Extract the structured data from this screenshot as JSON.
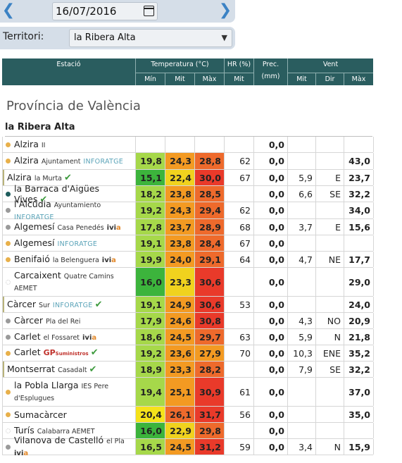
{
  "controls": {
    "date": "16/07/2016",
    "territory_label": "Territori:",
    "territory_value": "la Ribera Alta"
  },
  "header": {
    "station": "Estació",
    "temperature": "Temperatura (°C)",
    "t_min": "Mín",
    "t_mit": "Mit",
    "t_max": "Màx",
    "humidity": "HR (%)",
    "hr_mit": "Mit",
    "precip": "Prec. (mm)",
    "wind": "Vent",
    "w_mit": "Mit",
    "w_dir": "Dir",
    "w_max": "Màx"
  },
  "section": {
    "province": "Província de València",
    "region": "la Ribera Alta"
  },
  "colors": {
    "header_bg": "#2a5d5f",
    "dot_orange": "#e8b04a",
    "dot_gray": "#9a9a9a",
    "dot_teal": "#1e5c5c",
    "dot_empty": "#cccccc"
  },
  "rows": [
    {
      "name": "Alzira",
      "sub": "II",
      "brand": "",
      "check": false,
      "dot": "orange",
      "min": "",
      "mit": "",
      "max": "",
      "hr": "",
      "prec": "0,0",
      "vmit": "",
      "vdir": "",
      "vmax": "",
      "h": 23
    },
    {
      "name": "Alzira",
      "sub": "Ajuntament",
      "brand": "INFORATGE",
      "check": false,
      "dot": "orange",
      "min": "19,8",
      "mit": "24,3",
      "max": "28,8",
      "hr": "62",
      "prec": "0,0",
      "vmit": "",
      "vdir": "",
      "vmax": "43,0",
      "h": 24,
      "cmin": "green-light",
      "cmit": "orange",
      "cmax": "orange-red"
    },
    {
      "name": "Alzira",
      "sub": "la Murta",
      "brand": "",
      "check": true,
      "dot": "none",
      "min": "15,1",
      "mit": "22,4",
      "max": "30,0",
      "hr": "67",
      "prec": "0,0",
      "vmit": "5,9",
      "vdir": "E",
      "vmax": "23,7",
      "h": 23,
      "cmin": "green-dark",
      "cmit": "yellow",
      "cmax": "red"
    },
    {
      "name": "la Barraca d'Aigües Vives",
      "sub": "",
      "brand": "",
      "check": true,
      "dot": "teal",
      "min": "18,2",
      "mit": "23,8",
      "max": "28,5",
      "hr": "",
      "prec": "0,0",
      "vmit": "6,6",
      "vdir": "SE",
      "vmax": "32,2",
      "h": 23,
      "cmin": "green-light",
      "cmit": "orange",
      "cmax": "orange-red"
    },
    {
      "name": "l'Alcúdia",
      "sub": "Ayuntamiento",
      "brand": "INFORATGE",
      "check": false,
      "dot": "gray",
      "min": "19,2",
      "mit": "24,3",
      "max": "29,4",
      "hr": "62",
      "prec": "0,0",
      "vmit": "",
      "vdir": "",
      "vmax": "34,0",
      "h": 24,
      "cmin": "green-light",
      "cmit": "orange",
      "cmax": "orange-red"
    },
    {
      "name": "Algemesí",
      "sub": "Casa Penedés",
      "brand": "ivia",
      "check": false,
      "dot": "gray",
      "min": "17,8",
      "mit": "23,7",
      "max": "28,9",
      "hr": "68",
      "prec": "0,0",
      "vmit": "3,7",
      "vdir": "E",
      "vmax": "15,6",
      "h": 23,
      "cmin": "green-light",
      "cmit": "orange",
      "cmax": "orange-red"
    },
    {
      "name": "Algemesí",
      "sub": "",
      "brand": "INFORATGE",
      "check": false,
      "dot": "orange",
      "min": "19,1",
      "mit": "23,8",
      "max": "28,4",
      "hr": "67",
      "prec": "0,0",
      "vmit": "",
      "vdir": "",
      "vmax": "",
      "h": 23,
      "cmin": "green-light",
      "cmit": "orange",
      "cmax": "orange-red"
    },
    {
      "name": "Benifaió",
      "sub": "la Belenguera",
      "brand": "ivia",
      "check": false,
      "dot": "orange",
      "min": "19,9",
      "mit": "24,0",
      "max": "29,1",
      "hr": "64",
      "prec": "0,0",
      "vmit": "4,7",
      "vdir": "NE",
      "vmax": "17,7",
      "h": 23,
      "cmin": "green-light",
      "cmit": "orange",
      "cmax": "orange-red"
    },
    {
      "name": "Carcaixent",
      "sub": "Quatre Camins",
      "sub2": "AEMET",
      "brand": "",
      "check": false,
      "dot": "empty",
      "min": "16,0",
      "mit": "23,3",
      "max": "30,6",
      "hr": "",
      "prec": "0,0",
      "vmit": "",
      "vdir": "",
      "vmax": "29,0",
      "h": 41,
      "cmin": "green-dark",
      "cmit": "yellow",
      "cmax": "red"
    },
    {
      "name": "Càrcer",
      "sub": "Sur",
      "brand": "INFORATGE",
      "check": true,
      "dot": "none",
      "min": "19,1",
      "mit": "24,9",
      "max": "30,6",
      "hr": "53",
      "prec": "0,0",
      "vmit": "",
      "vdir": "",
      "vmax": "24,0",
      "h": 23,
      "cmin": "green-light",
      "cmit": "orange",
      "cmax": "red"
    },
    {
      "name": "Càrcer",
      "sub": "Pla del Rei",
      "brand": "",
      "check": false,
      "dot": "gray",
      "min": "17,9",
      "mit": "24,6",
      "max": "30,8",
      "hr": "",
      "prec": "0,0",
      "vmit": "4,3",
      "vdir": "NO",
      "vmax": "20,9",
      "h": 23,
      "cmin": "green-light",
      "cmit": "orange",
      "cmax": "red"
    },
    {
      "name": "Carlet",
      "sub": "el Fossaret",
      "brand": "ivia",
      "check": false,
      "dot": "gray",
      "min": "18,6",
      "mit": "24,5",
      "max": "29,7",
      "hr": "63",
      "prec": "0,0",
      "vmit": "5,9",
      "vdir": "N",
      "vmax": "21,8",
      "h": 23,
      "cmin": "green-light",
      "cmit": "orange",
      "cmax": "orange-red"
    },
    {
      "name": "Carlet",
      "sub": "",
      "brand": "GP",
      "brandsub": "Suministros",
      "check": true,
      "dot": "orange",
      "min": "19,2",
      "mit": "23,6",
      "max": "27,9",
      "hr": "70",
      "prec": "0,0",
      "vmit": "10,3",
      "vdir": "ENE",
      "vmax": "35,2",
      "h": 23,
      "cmin": "green-light",
      "cmit": "orange",
      "cmax": "orange"
    },
    {
      "name": "Montserrat",
      "sub": "Casadalt",
      "brand": "",
      "check": true,
      "dot": "none",
      "min": "18,9",
      "mit": "23,3",
      "max": "28,2",
      "hr": "",
      "prec": "0,0",
      "vmit": "7,9",
      "vdir": "SE",
      "vmax": "32,2",
      "h": 23,
      "cmin": "green-light",
      "cmit": "orange",
      "cmax": "orange-red"
    },
    {
      "name": "la Pobla Llarga",
      "sub": "IES Pere",
      "sub2": "d'Esplugues",
      "brand": "",
      "check": false,
      "dot": "orange",
      "min": "19,4",
      "mit": "25,1",
      "max": "30,9",
      "hr": "61",
      "prec": "0,0",
      "vmit": "",
      "vdir": "",
      "vmax": "37,0",
      "h": 41,
      "cmin": "green-light",
      "cmit": "orange",
      "cmax": "red"
    },
    {
      "name": "Sumacàrcer",
      "sub": "",
      "brand": "",
      "check": false,
      "dot": "orange",
      "min": "20,4",
      "mit": "26,1",
      "max": "31,7",
      "hr": "56",
      "prec": "0,0",
      "vmit": "",
      "vdir": "",
      "vmax": "35,0",
      "h": 23,
      "cmin": "yellow-bright",
      "cmit": "orange-red",
      "cmax": "red"
    },
    {
      "name": "Turís",
      "sub": "Calabarra AEMET",
      "brand": "",
      "check": false,
      "dot": "empty",
      "min": "16,0",
      "mit": "22,9",
      "max": "29,8",
      "hr": "",
      "prec": "0,0",
      "vmit": "",
      "vdir": "",
      "vmax": "",
      "h": 23,
      "cmin": "green-dark",
      "cmit": "yellow",
      "cmax": "orange-red"
    },
    {
      "name": "Vilanova de Castelló",
      "sub": "el Pla",
      "brand": "ivia",
      "check": false,
      "dot": "gray",
      "min": "16,5",
      "mit": "24,5",
      "max": "31,2",
      "hr": "59",
      "prec": "0,0",
      "vmit": "3,4",
      "vdir": "N",
      "vmax": "15,9",
      "h": 23,
      "cmin": "green-light",
      "cmit": "orange",
      "cmax": "red"
    }
  ]
}
